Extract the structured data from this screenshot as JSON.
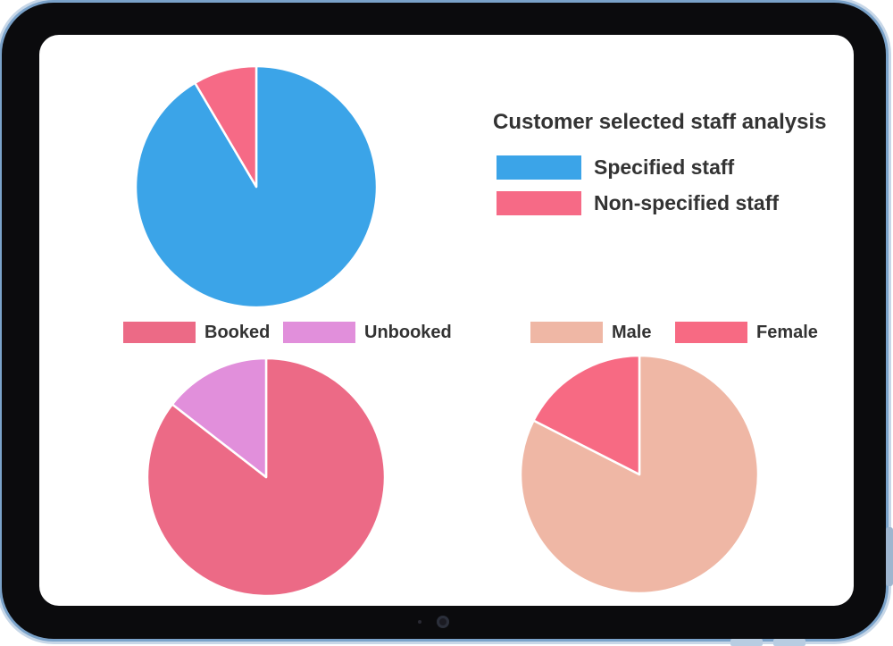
{
  "charts": {
    "staff": {
      "title": "Customer selected staff analysis",
      "items": [
        {
          "label": "Specified staff",
          "color": "#3ba4e8"
        },
        {
          "label": "Non-specified staff",
          "color": "#f66a86"
        }
      ]
    },
    "booking": {
      "items": [
        {
          "label": "Booked",
          "color": "#ec6a86"
        },
        {
          "label": "Unbooked",
          "color": "#e18fdb"
        }
      ]
    },
    "gender": {
      "items": [
        {
          "label": "Male",
          "color": "#efb7a5"
        },
        {
          "label": "Female",
          "color": "#f76a83"
        }
      ]
    }
  },
  "chart_data": [
    {
      "type": "pie",
      "title": "Customer selected staff analysis",
      "labels": [
        "Specified staff",
        "Non-specified staff"
      ],
      "values": [
        91.5,
        8.5
      ],
      "legend": "right"
    },
    {
      "type": "pie",
      "labels": [
        "Booked",
        "Unbooked"
      ],
      "values": [
        85.5,
        14.5
      ],
      "legend": "top"
    },
    {
      "type": "pie",
      "labels": [
        "Male",
        "Female"
      ],
      "values": [
        82.5,
        17.5
      ],
      "legend": "top"
    }
  ]
}
